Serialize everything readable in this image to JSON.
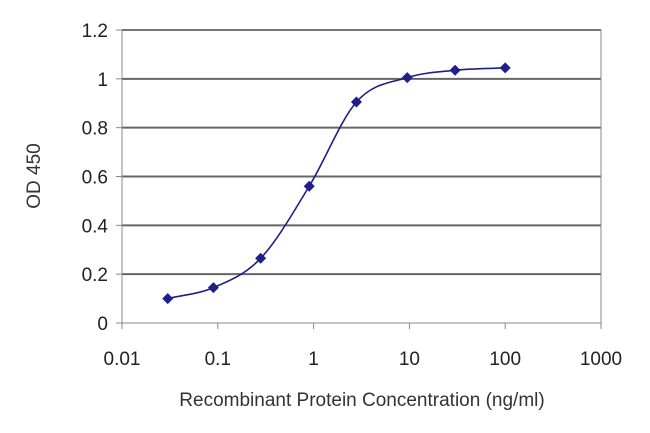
{
  "chart_data": {
    "type": "line",
    "xlabel": "Recombinant Protein Concentration (ng/ml)",
    "ylabel": "OD 450",
    "x_scale": "log",
    "xlim": [
      0.01,
      1000
    ],
    "ylim": [
      0,
      1.2
    ],
    "x_ticks": [
      0.01,
      0.1,
      1,
      10,
      100,
      1000
    ],
    "x_tick_labels": [
      "0.01",
      "0.1",
      "1",
      "10",
      "100",
      "1000"
    ],
    "y_ticks": [
      0,
      0.2,
      0.4,
      0.6,
      0.8,
      1,
      1.2
    ],
    "y_tick_labels": [
      "0",
      "0.2",
      "0.4",
      "0.6",
      "0.8",
      "1",
      "1.2"
    ],
    "grid": "horizontal",
    "colors": {
      "series": "#1e1e8c",
      "grid": "#666666",
      "axis": "#888888"
    },
    "series": [
      {
        "x": [
          0.03,
          0.09,
          0.28,
          0.9,
          2.8,
          9.5,
          30,
          100
        ],
        "y": [
          0.1,
          0.145,
          0.265,
          0.56,
          0.905,
          1.005,
          1.035,
          1.045
        ]
      }
    ]
  }
}
